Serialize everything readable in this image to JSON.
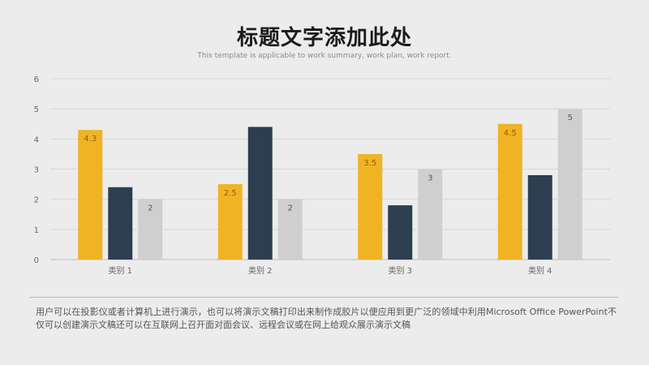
{
  "header": {
    "title": "标题文字添加此处",
    "subtitle": "This template is applicable to work summary, work plan, work report."
  },
  "footer": {
    "description": "用户可以在投影仪或者计算机上进行演示，也可以将演示文稿打印出来制作成胶片以便应用到更广泛的领域中利用Microsoft Office PowerPoint不仅可以创建演示文稿还可以在互联网上召开面对面会议、远程会议或在网上给观众展示演示文稿"
  },
  "chart_data": {
    "type": "bar",
    "categories": [
      "类别 1",
      "类别 2",
      "类别 3",
      "类别 4"
    ],
    "series": [
      {
        "values": [
          4.3,
          2.5,
          3.5,
          4.5
        ],
        "color": "#f0b323",
        "labels": [
          "4.3",
          "2.5",
          "3.5",
          "4.5"
        ]
      },
      {
        "values": [
          2.4,
          4.4,
          1.8,
          2.8
        ],
        "color": "#2d3e50",
        "labels": [
          "",
          "",
          "",
          ""
        ]
      },
      {
        "values": [
          2,
          2,
          3,
          5
        ],
        "color": "#cfcfcf",
        "labels": [
          "2",
          "2",
          "3",
          "5"
        ]
      }
    ],
    "yticks": [
      "0",
      "1",
      "2",
      "3",
      "4",
      "5",
      "6"
    ],
    "ylim": [
      0,
      6
    ],
    "grid": true,
    "legend": "none"
  }
}
